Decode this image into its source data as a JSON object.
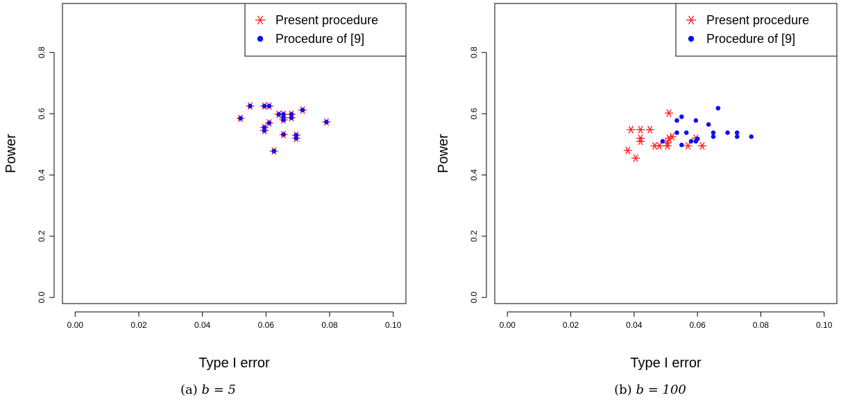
{
  "chart_data": [
    {
      "type": "scatter",
      "caption_prefix": "(a)",
      "caption_math": "b = 5",
      "xlabel": "Type I error",
      "ylabel": "Power",
      "xlim": [
        -0.004,
        0.104
      ],
      "ylim": [
        -0.02,
        0.96
      ],
      "xticks": [
        "0.00",
        "0.02",
        "0.04",
        "0.06",
        "0.08",
        "0.10"
      ],
      "yticks": [
        "0.0",
        "0.2",
        "0.4",
        "0.6",
        "0.8"
      ],
      "legend_position": "top-right",
      "series": [
        {
          "name": "Present procedure",
          "marker": "asterisk",
          "color": "#ff2020",
          "points": [
            [
              0.052,
              0.585
            ],
            [
              0.055,
              0.625
            ],
            [
              0.0595,
              0.625
            ],
            [
              0.061,
              0.625
            ],
            [
              0.0595,
              0.545
            ],
            [
              0.0595,
              0.555
            ],
            [
              0.061,
              0.57
            ],
            [
              0.064,
              0.598
            ],
            [
              0.0655,
              0.598
            ],
            [
              0.0655,
              0.587
            ],
            [
              0.0655,
              0.58
            ],
            [
              0.068,
              0.598
            ],
            [
              0.068,
              0.587
            ],
            [
              0.0695,
              0.53
            ],
            [
              0.0695,
              0.52
            ],
            [
              0.0655,
              0.532
            ],
            [
              0.0625,
              0.478
            ],
            [
              0.0715,
              0.612
            ],
            [
              0.079,
              0.573
            ]
          ]
        },
        {
          "name": "Procedure of [9]",
          "marker": "dot",
          "color": "#1010ee",
          "points": [
            [
              0.052,
              0.585
            ],
            [
              0.055,
              0.625
            ],
            [
              0.0595,
              0.625
            ],
            [
              0.061,
              0.625
            ],
            [
              0.0595,
              0.545
            ],
            [
              0.0595,
              0.555
            ],
            [
              0.061,
              0.57
            ],
            [
              0.064,
              0.598
            ],
            [
              0.0655,
              0.598
            ],
            [
              0.0655,
              0.587
            ],
            [
              0.0655,
              0.58
            ],
            [
              0.068,
              0.598
            ],
            [
              0.068,
              0.587
            ],
            [
              0.0695,
              0.53
            ],
            [
              0.0695,
              0.52
            ],
            [
              0.0655,
              0.532
            ],
            [
              0.0625,
              0.478
            ],
            [
              0.0715,
              0.612
            ],
            [
              0.079,
              0.573
            ]
          ]
        }
      ]
    },
    {
      "type": "scatter",
      "caption_prefix": "(b)",
      "caption_math": "b = 100",
      "xlabel": "Type I error",
      "ylabel": "Power",
      "xlim": [
        -0.004,
        0.104
      ],
      "ylim": [
        -0.02,
        0.96
      ],
      "xticks": [
        "0.00",
        "0.02",
        "0.04",
        "0.06",
        "0.08",
        "0.10"
      ],
      "yticks": [
        "0.0",
        "0.2",
        "0.4",
        "0.6",
        "0.8"
      ],
      "legend_position": "top-right",
      "series": [
        {
          "name": "Present procedure",
          "marker": "asterisk",
          "color": "#ff2020",
          "points": [
            [
              0.038,
              0.48
            ],
            [
              0.039,
              0.548
            ],
            [
              0.0405,
              0.455
            ],
            [
              0.042,
              0.548
            ],
            [
              0.042,
              0.52
            ],
            [
              0.042,
              0.51
            ],
            [
              0.045,
              0.548
            ],
            [
              0.0465,
              0.495
            ],
            [
              0.048,
              0.495
            ],
            [
              0.0505,
              0.495
            ],
            [
              0.0505,
              0.505
            ],
            [
              0.051,
              0.52
            ],
            [
              0.052,
              0.525
            ],
            [
              0.051,
              0.602
            ],
            [
              0.057,
              0.495
            ],
            [
              0.0595,
              0.52
            ],
            [
              0.0615,
              0.495
            ]
          ]
        },
        {
          "name": "Procedure of [9]",
          "marker": "dot",
          "color": "#1010ee",
          "points": [
            [
              0.049,
              0.51
            ],
            [
              0.0535,
              0.538
            ],
            [
              0.0535,
              0.578
            ],
            [
              0.055,
              0.59
            ],
            [
              0.055,
              0.498
            ],
            [
              0.0565,
              0.538
            ],
            [
              0.058,
              0.51
            ],
            [
              0.0595,
              0.51
            ],
            [
              0.0595,
              0.578
            ],
            [
              0.0635,
              0.565
            ],
            [
              0.065,
              0.538
            ],
            [
              0.065,
              0.525
            ],
            [
              0.0665,
              0.618
            ],
            [
              0.0695,
              0.538
            ],
            [
              0.0725,
              0.538
            ],
            [
              0.0725,
              0.525
            ],
            [
              0.077,
              0.525
            ],
            [
              0.06,
              0.518
            ]
          ]
        }
      ]
    }
  ]
}
